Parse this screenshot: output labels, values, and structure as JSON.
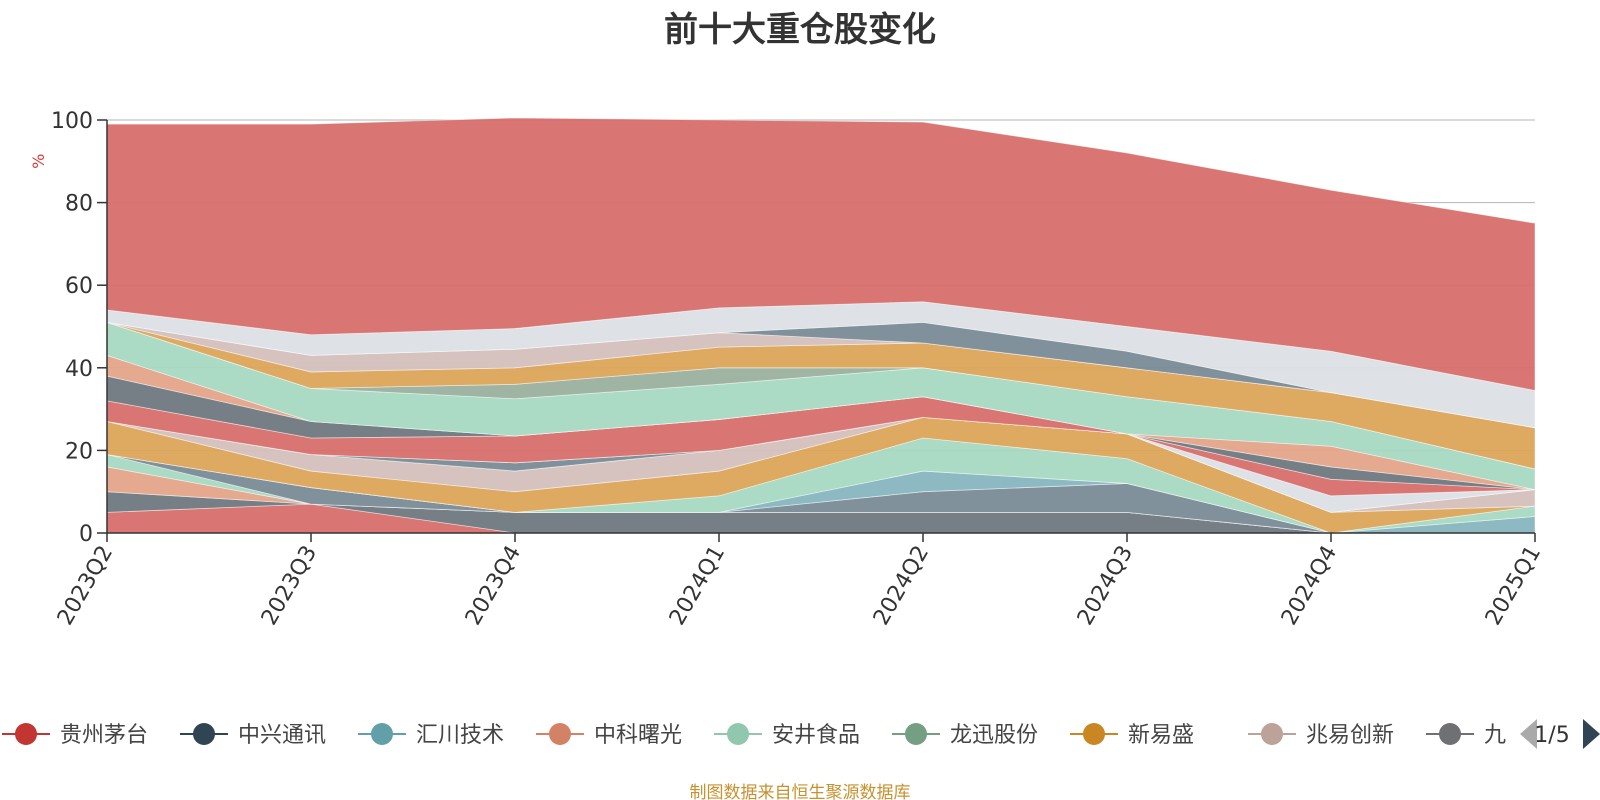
{
  "title": "前十大重仓股变化",
  "source_note": "制图数据来自恒生聚源数据库",
  "legend_page": "1/5",
  "chart_data": {
    "type": "area",
    "stacked": true,
    "title": "前十大重仓股变化",
    "ylabel": "%",
    "ylim": [
      0,
      100
    ],
    "yticks": [
      0,
      20,
      40,
      60,
      80,
      100
    ],
    "grid": true,
    "legend_position": "bottom",
    "categories": [
      "2023Q2",
      "2023Q3",
      "2023Q4",
      "2024Q1",
      "2024Q2",
      "2024Q3",
      "2024Q4",
      "2025Q1"
    ],
    "series": [
      {
        "color": "#d76f6c",
        "values": [
          5.0,
          7.0,
          0.0,
          0.0,
          0.0,
          0.0,
          0.0,
          0.0
        ]
      },
      {
        "color": "#707880",
        "values": [
          5.0,
          0.0,
          5.0,
          5.0,
          5.0,
          5.0,
          0.0,
          0.0
        ]
      },
      {
        "color": "#e4a48a",
        "values": [
          6.0,
          0.0,
          0.0,
          0.0,
          0.0,
          0.0,
          0.0,
          0.0
        ]
      },
      {
        "color": "#a6d8c2",
        "values": [
          3.0,
          0.0,
          0.0,
          0.0,
          0.0,
          0.0,
          0.0,
          0.0
        ]
      },
      {
        "color": "#7a8b96",
        "values": [
          0.0,
          4.0,
          0.0,
          0.0,
          5.0,
          7.0,
          0.0,
          0.0
        ]
      },
      {
        "color": "#86b5bf",
        "values": [
          0.0,
          0.0,
          0.0,
          0.0,
          5.0,
          0.0,
          0.0,
          4.0
        ]
      },
      {
        "color": "#a6d8c2",
        "values": [
          0.0,
          0.0,
          0.0,
          4.0,
          8.0,
          6.0,
          0.0,
          2.5
        ]
      },
      {
        "color": "#dca55a",
        "values": [
          8.0,
          4.0,
          5.0,
          6.0,
          5.0,
          6.0,
          5.0,
          0.0
        ]
      },
      {
        "color": "#d4c0bc",
        "values": [
          0.0,
          4.0,
          5.0,
          5.0,
          0.0,
          0.0,
          0.0,
          4.0
        ]
      },
      {
        "color": "#7a8b96",
        "values": [
          0.0,
          0.0,
          2.0,
          0.0,
          0.0,
          0.0,
          0.0,
          0.0
        ]
      },
      {
        "color": "#dce0e6",
        "values": [
          0.0,
          0.0,
          0.0,
          0.0,
          0.0,
          0.0,
          4.0,
          0.0
        ]
      },
      {
        "color": "#d76f6c",
        "values": [
          5.0,
          4.0,
          6.5,
          7.5,
          5.0,
          0.0,
          4.0,
          0.0
        ]
      },
      {
        "color": "#707880",
        "values": [
          6.0,
          4.0,
          0.0,
          0.0,
          0.0,
          0.0,
          3.0,
          0.0
        ]
      },
      {
        "color": "#e4a48a",
        "values": [
          5.0,
          0.0,
          0.0,
          0.0,
          0.0,
          0.0,
          5.0,
          0.0
        ]
      },
      {
        "color": "#a6d8c2",
        "values": [
          8.0,
          8.0,
          9.0,
          8.5,
          7.0,
          9.0,
          6.0,
          5.0
        ]
      },
      {
        "color": "#9ab09e",
        "values": [
          0.0,
          0.0,
          3.5,
          4.0,
          0.0,
          0.0,
          0.0,
          0.0
        ]
      },
      {
        "color": "#dca55a",
        "values": [
          0.0,
          4.0,
          4.0,
          5.0,
          6.0,
          7.0,
          7.0,
          10.0
        ]
      },
      {
        "color": "#d4c0bc",
        "values": [
          0.0,
          4.0,
          4.5,
          3.5,
          0.0,
          0.0,
          0.0,
          0.0
        ]
      },
      {
        "color": "#7a8b96",
        "values": [
          0.0,
          0.0,
          0.0,
          0.0,
          5.0,
          4.0,
          0.0,
          0.0
        ]
      },
      {
        "color": "#dce0e6",
        "values": [
          3.0,
          5.0,
          5.0,
          6.0,
          5.0,
          6.0,
          10.0,
          9.0
        ]
      },
      {
        "color": "#d76f6c",
        "values": [
          45.0,
          51.0,
          51.0,
          45.5,
          43.5,
          42.0,
          39.0,
          40.5
        ]
      }
    ],
    "legend": [
      {
        "name": "贵州茅台",
        "color": "#c23531"
      },
      {
        "name": "中兴通讯",
        "color": "#2f4554"
      },
      {
        "name": "汇川技术",
        "color": "#61a0a8"
      },
      {
        "name": "中科曙光",
        "color": "#d48265"
      },
      {
        "name": "安井食品",
        "color": "#91c7ae"
      },
      {
        "name": "龙迅股份",
        "color": "#749f83"
      },
      {
        "name": "新易盛",
        "color": "#ca8622"
      },
      {
        "name": "兆易创新",
        "color": "#bda29a"
      },
      {
        "name": "九",
        "color": "#6e7074"
      }
    ],
    "x_axis_color": "#333333",
    "gridline_color": "#b5b5b5",
    "unit_color": "#d83a3a",
    "pager_arrow_prev_color": "#aaaaaa",
    "pager_arrow_next_color": "#2f4554"
  }
}
